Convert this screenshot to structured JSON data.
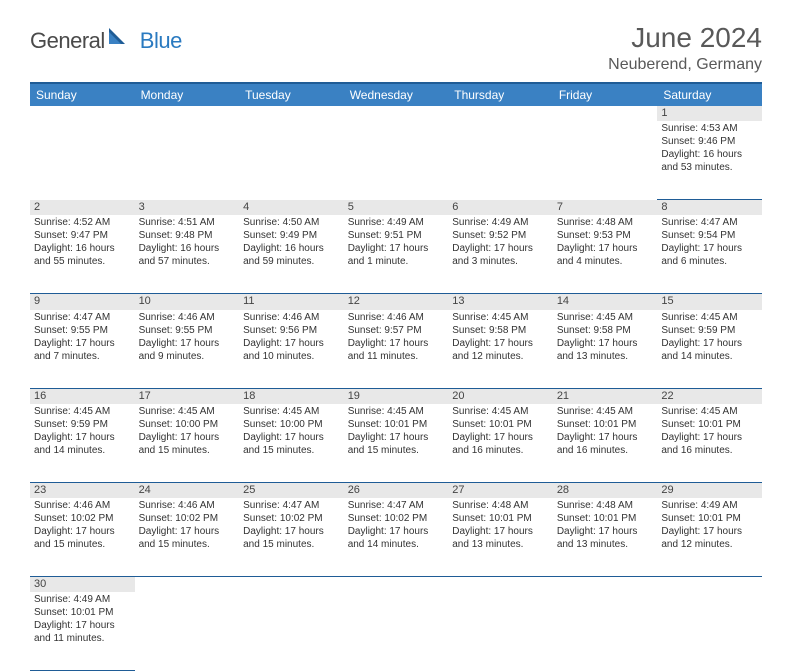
{
  "logo": {
    "main": "General",
    "sub": "Blue"
  },
  "title": "June 2024",
  "location": "Neuberend, Germany",
  "colors": {
    "header_bg": "#3a81c3",
    "header_border": "#1f5c96",
    "daynum_bg": "#e8e8e8",
    "text": "#333333",
    "title_color": "#595959",
    "logo_gray": "#4a4a4a",
    "logo_blue": "#2a7ac0"
  },
  "typography": {
    "title_fontsize": 28,
    "location_fontsize": 16,
    "dayheader_fontsize": 12,
    "daynum_fontsize": 11,
    "cell_fontsize": 10
  },
  "dayHeaders": [
    "Sunday",
    "Monday",
    "Tuesday",
    "Wednesday",
    "Thursday",
    "Friday",
    "Saturday"
  ],
  "weeks": [
    [
      {
        "num": "",
        "lines": []
      },
      {
        "num": "",
        "lines": []
      },
      {
        "num": "",
        "lines": []
      },
      {
        "num": "",
        "lines": []
      },
      {
        "num": "",
        "lines": []
      },
      {
        "num": "",
        "lines": []
      },
      {
        "num": "1",
        "lines": [
          "Sunrise: 4:53 AM",
          "Sunset: 9:46 PM",
          "Daylight: 16 hours and 53 minutes."
        ]
      }
    ],
    [
      {
        "num": "2",
        "lines": [
          "Sunrise: 4:52 AM",
          "Sunset: 9:47 PM",
          "Daylight: 16 hours and 55 minutes."
        ]
      },
      {
        "num": "3",
        "lines": [
          "Sunrise: 4:51 AM",
          "Sunset: 9:48 PM",
          "Daylight: 16 hours and 57 minutes."
        ]
      },
      {
        "num": "4",
        "lines": [
          "Sunrise: 4:50 AM",
          "Sunset: 9:49 PM",
          "Daylight: 16 hours and 59 minutes."
        ]
      },
      {
        "num": "5",
        "lines": [
          "Sunrise: 4:49 AM",
          "Sunset: 9:51 PM",
          "Daylight: 17 hours and 1 minute."
        ]
      },
      {
        "num": "6",
        "lines": [
          "Sunrise: 4:49 AM",
          "Sunset: 9:52 PM",
          "Daylight: 17 hours and 3 minutes."
        ]
      },
      {
        "num": "7",
        "lines": [
          "Sunrise: 4:48 AM",
          "Sunset: 9:53 PM",
          "Daylight: 17 hours and 4 minutes."
        ]
      },
      {
        "num": "8",
        "lines": [
          "Sunrise: 4:47 AM",
          "Sunset: 9:54 PM",
          "Daylight: 17 hours and 6 minutes."
        ]
      }
    ],
    [
      {
        "num": "9",
        "lines": [
          "Sunrise: 4:47 AM",
          "Sunset: 9:55 PM",
          "Daylight: 17 hours and 7 minutes."
        ]
      },
      {
        "num": "10",
        "lines": [
          "Sunrise: 4:46 AM",
          "Sunset: 9:55 PM",
          "Daylight: 17 hours and 9 minutes."
        ]
      },
      {
        "num": "11",
        "lines": [
          "Sunrise: 4:46 AM",
          "Sunset: 9:56 PM",
          "Daylight: 17 hours and 10 minutes."
        ]
      },
      {
        "num": "12",
        "lines": [
          "Sunrise: 4:46 AM",
          "Sunset: 9:57 PM",
          "Daylight: 17 hours and 11 minutes."
        ]
      },
      {
        "num": "13",
        "lines": [
          "Sunrise: 4:45 AM",
          "Sunset: 9:58 PM",
          "Daylight: 17 hours and 12 minutes."
        ]
      },
      {
        "num": "14",
        "lines": [
          "Sunrise: 4:45 AM",
          "Sunset: 9:58 PM",
          "Daylight: 17 hours and 13 minutes."
        ]
      },
      {
        "num": "15",
        "lines": [
          "Sunrise: 4:45 AM",
          "Sunset: 9:59 PM",
          "Daylight: 17 hours and 14 minutes."
        ]
      }
    ],
    [
      {
        "num": "16",
        "lines": [
          "Sunrise: 4:45 AM",
          "Sunset: 9:59 PM",
          "Daylight: 17 hours and 14 minutes."
        ]
      },
      {
        "num": "17",
        "lines": [
          "Sunrise: 4:45 AM",
          "Sunset: 10:00 PM",
          "Daylight: 17 hours and 15 minutes."
        ]
      },
      {
        "num": "18",
        "lines": [
          "Sunrise: 4:45 AM",
          "Sunset: 10:00 PM",
          "Daylight: 17 hours and 15 minutes."
        ]
      },
      {
        "num": "19",
        "lines": [
          "Sunrise: 4:45 AM",
          "Sunset: 10:01 PM",
          "Daylight: 17 hours and 15 minutes."
        ]
      },
      {
        "num": "20",
        "lines": [
          "Sunrise: 4:45 AM",
          "Sunset: 10:01 PM",
          "Daylight: 17 hours and 16 minutes."
        ]
      },
      {
        "num": "21",
        "lines": [
          "Sunrise: 4:45 AM",
          "Sunset: 10:01 PM",
          "Daylight: 17 hours and 16 minutes."
        ]
      },
      {
        "num": "22",
        "lines": [
          "Sunrise: 4:45 AM",
          "Sunset: 10:01 PM",
          "Daylight: 17 hours and 16 minutes."
        ]
      }
    ],
    [
      {
        "num": "23",
        "lines": [
          "Sunrise: 4:46 AM",
          "Sunset: 10:02 PM",
          "Daylight: 17 hours and 15 minutes."
        ]
      },
      {
        "num": "24",
        "lines": [
          "Sunrise: 4:46 AM",
          "Sunset: 10:02 PM",
          "Daylight: 17 hours and 15 minutes."
        ]
      },
      {
        "num": "25",
        "lines": [
          "Sunrise: 4:47 AM",
          "Sunset: 10:02 PM",
          "Daylight: 17 hours and 15 minutes."
        ]
      },
      {
        "num": "26",
        "lines": [
          "Sunrise: 4:47 AM",
          "Sunset: 10:02 PM",
          "Daylight: 17 hours and 14 minutes."
        ]
      },
      {
        "num": "27",
        "lines": [
          "Sunrise: 4:48 AM",
          "Sunset: 10:01 PM",
          "Daylight: 17 hours and 13 minutes."
        ]
      },
      {
        "num": "28",
        "lines": [
          "Sunrise: 4:48 AM",
          "Sunset: 10:01 PM",
          "Daylight: 17 hours and 13 minutes."
        ]
      },
      {
        "num": "29",
        "lines": [
          "Sunrise: 4:49 AM",
          "Sunset: 10:01 PM",
          "Daylight: 17 hours and 12 minutes."
        ]
      }
    ],
    [
      {
        "num": "30",
        "lines": [
          "Sunrise: 4:49 AM",
          "Sunset: 10:01 PM",
          "Daylight: 17 hours and 11 minutes."
        ]
      },
      {
        "num": "",
        "lines": []
      },
      {
        "num": "",
        "lines": []
      },
      {
        "num": "",
        "lines": []
      },
      {
        "num": "",
        "lines": []
      },
      {
        "num": "",
        "lines": []
      },
      {
        "num": "",
        "lines": []
      }
    ]
  ]
}
